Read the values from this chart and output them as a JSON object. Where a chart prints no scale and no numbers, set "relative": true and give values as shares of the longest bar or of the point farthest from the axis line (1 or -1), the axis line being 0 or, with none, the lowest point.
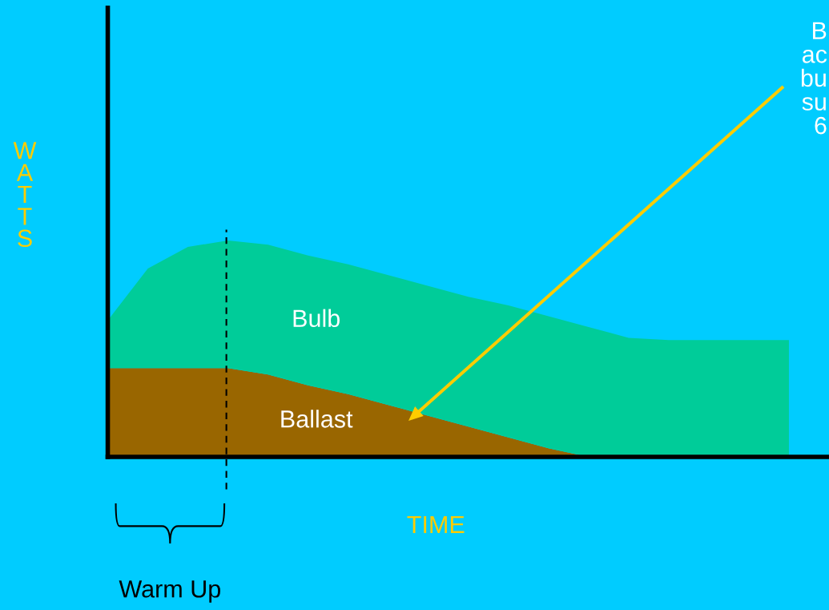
{
  "chart_data": {
    "type": "area",
    "relative": true,
    "stacked": true,
    "legend": false,
    "xlabel": "TIME",
    "ylabel": "W\nA\nT\nT\nS",
    "categories": [
      null,
      null,
      null,
      null,
      null,
      null,
      null,
      null,
      null,
      null,
      null,
      null,
      null,
      null,
      null,
      null,
      null,
      null
    ],
    "series": [
      {
        "name": "Ballast",
        "color": "#996600",
        "values": [
          0.41,
          0.41,
          0.41,
          0.41,
          0.38,
          0.33,
          0.29,
          0.24,
          0.19,
          0.14,
          0.09,
          0.04,
          0,
          0,
          0,
          0,
          0,
          0
        ]
      },
      {
        "name": "Bulb",
        "color": "#00cc99",
        "values": [
          0.22,
          0.46,
          0.56,
          0.59,
          0.6,
          0.6,
          0.6,
          0.6,
          0.6,
          0.6,
          0.61,
          0.61,
          0.6,
          0.55,
          0.54,
          0.54,
          0.54,
          0.54
        ]
      }
    ],
    "annotations": [
      "B\nac\nbu\nsu\n6",
      "Warm Up"
    ]
  }
}
